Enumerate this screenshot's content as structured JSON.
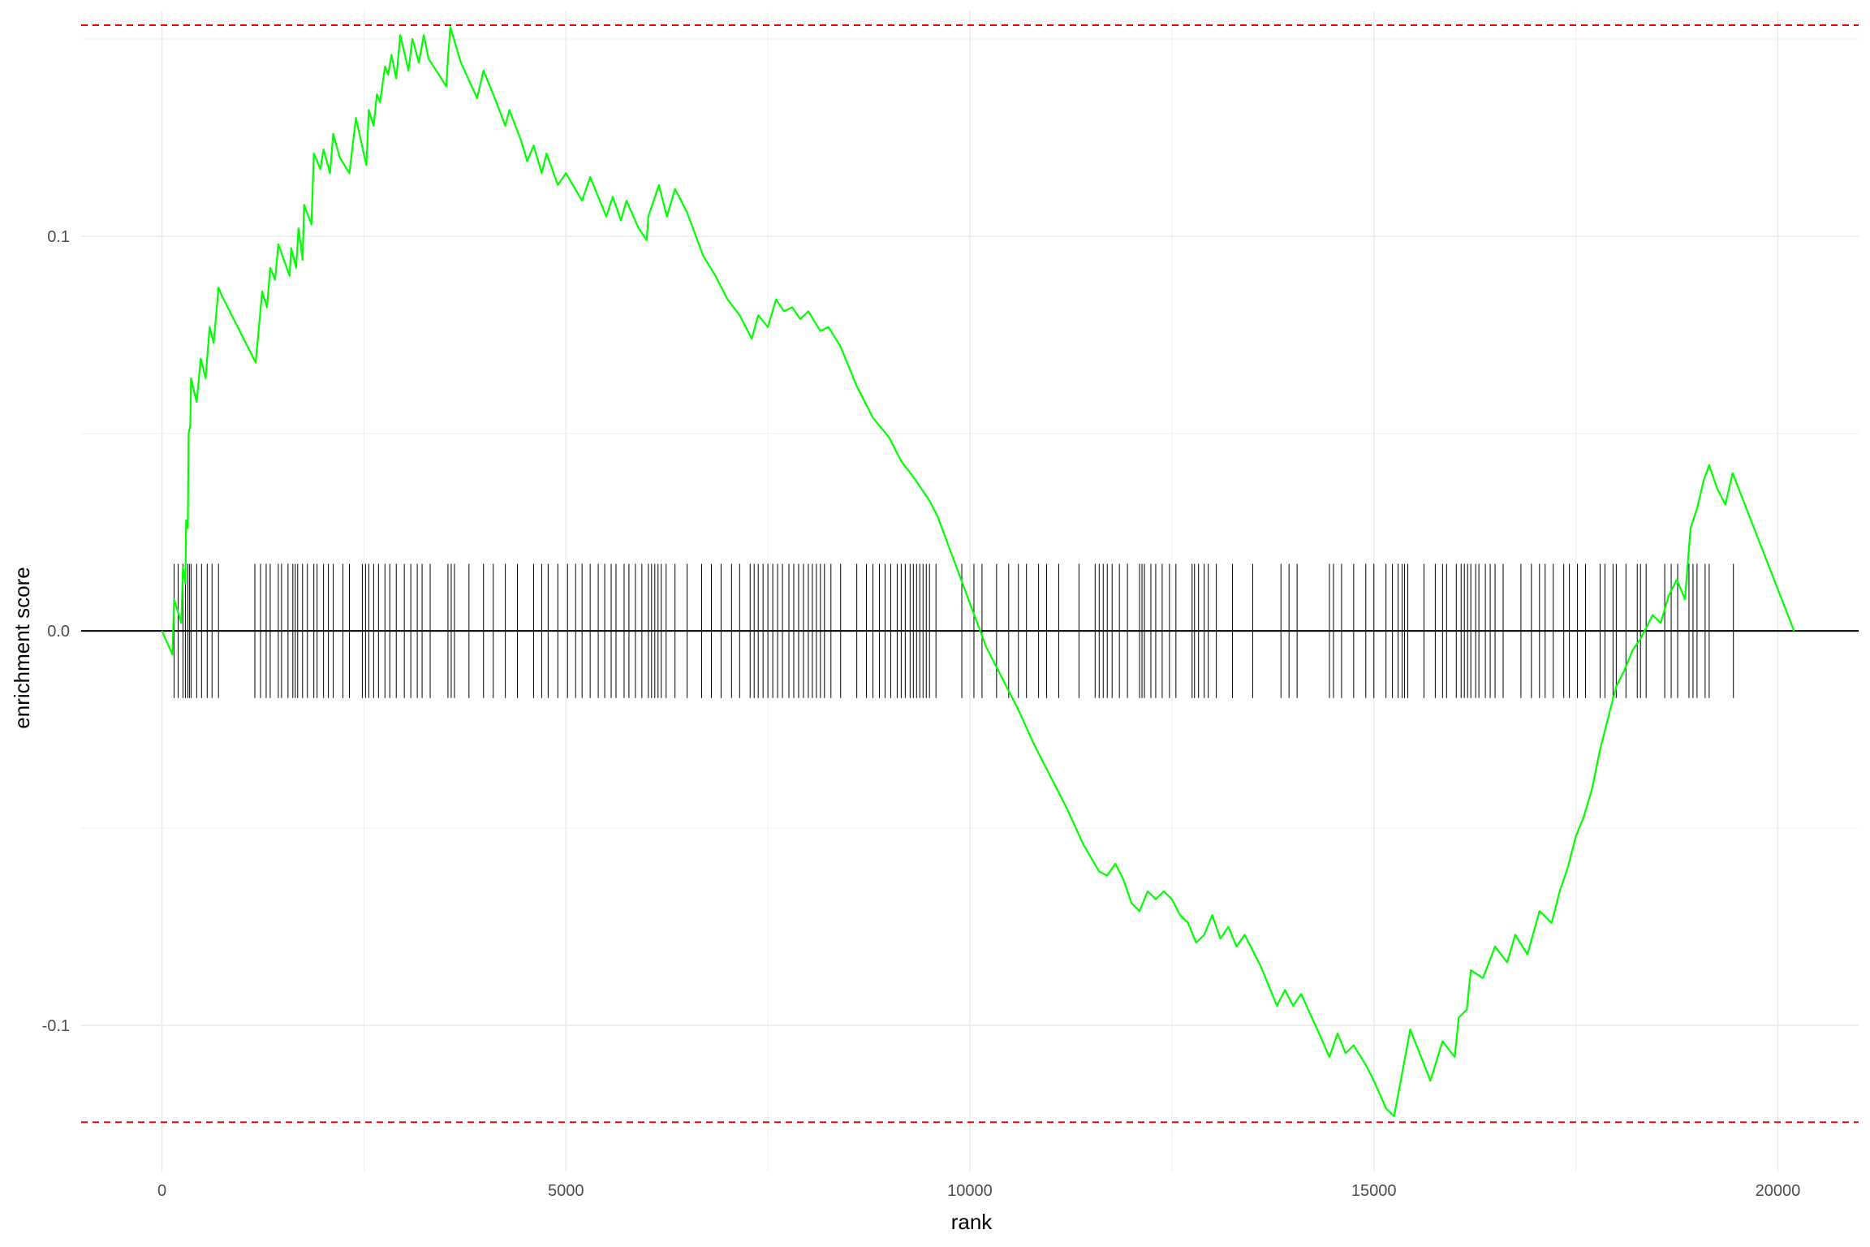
{
  "chart_data": {
    "type": "line",
    "title": "",
    "xlabel": "rank",
    "ylabel": "enrichment score",
    "xlim": [
      -1000,
      21000
    ],
    "ylim": [
      -0.137,
      0.157
    ],
    "x_ticks": [
      0,
      5000,
      10000,
      15000,
      20000
    ],
    "x_tick_labels": [
      "0",
      "5000",
      "10000",
      "15000",
      "20000"
    ],
    "y_ticks": [
      -0.1,
      0.0,
      0.1
    ],
    "y_tick_labels": [
      "-0.1",
      "0.0",
      "0.1"
    ],
    "grid": true,
    "line_color": "#00ff00",
    "threshold_color": "#ff0000",
    "thresholds": [
      0.1535,
      -0.1245
    ],
    "baseline": 0,
    "series": [
      {
        "values": [
          [
            0,
            0.0
          ],
          [
            130,
            -0.006
          ],
          [
            150,
            0.008
          ],
          [
            240,
            0.002
          ],
          [
            260,
            0.016
          ],
          [
            290,
            0.012
          ],
          [
            300,
            0.028
          ],
          [
            320,
            0.026
          ],
          [
            330,
            0.05
          ],
          [
            350,
            0.052
          ],
          [
            360,
            0.064
          ],
          [
            430,
            0.058
          ],
          [
            480,
            0.069
          ],
          [
            540,
            0.064
          ],
          [
            590,
            0.077
          ],
          [
            640,
            0.073
          ],
          [
            700,
            0.087
          ],
          [
            740,
            0.085
          ],
          [
            1160,
            0.068
          ],
          [
            1240,
            0.086
          ],
          [
            1300,
            0.082
          ],
          [
            1340,
            0.092
          ],
          [
            1400,
            0.089
          ],
          [
            1440,
            0.098
          ],
          [
            1580,
            0.09
          ],
          [
            1600,
            0.097
          ],
          [
            1660,
            0.092
          ],
          [
            1690,
            0.102
          ],
          [
            1740,
            0.094
          ],
          [
            1760,
            0.108
          ],
          [
            1850,
            0.103
          ],
          [
            1880,
            0.121
          ],
          [
            1960,
            0.117
          ],
          [
            2000,
            0.122
          ],
          [
            2080,
            0.116
          ],
          [
            2120,
            0.126
          ],
          [
            2200,
            0.12
          ],
          [
            2320,
            0.116
          ],
          [
            2400,
            0.13
          ],
          [
            2530,
            0.118
          ],
          [
            2560,
            0.132
          ],
          [
            2620,
            0.128
          ],
          [
            2660,
            0.136
          ],
          [
            2700,
            0.134
          ],
          [
            2760,
            0.143
          ],
          [
            2800,
            0.141
          ],
          [
            2840,
            0.146
          ],
          [
            2900,
            0.14
          ],
          [
            2950,
            0.151
          ],
          [
            3050,
            0.142
          ],
          [
            3100,
            0.15
          ],
          [
            3180,
            0.144
          ],
          [
            3240,
            0.151
          ],
          [
            3300,
            0.145
          ],
          [
            3520,
            0.138
          ],
          [
            3540,
            0.145
          ],
          [
            3570,
            0.153
          ],
          [
            3700,
            0.144
          ],
          [
            3900,
            0.135
          ],
          [
            3980,
            0.142
          ],
          [
            4100,
            0.136
          ],
          [
            4250,
            0.128
          ],
          [
            4300,
            0.132
          ],
          [
            4450,
            0.124
          ],
          [
            4520,
            0.119
          ],
          [
            4600,
            0.123
          ],
          [
            4700,
            0.116
          ],
          [
            4760,
            0.121
          ],
          [
            4900,
            0.113
          ],
          [
            5000,
            0.116
          ],
          [
            5200,
            0.109
          ],
          [
            5300,
            0.115
          ],
          [
            5500,
            0.105
          ],
          [
            5580,
            0.11
          ],
          [
            5680,
            0.104
          ],
          [
            5750,
            0.109
          ],
          [
            5900,
            0.102
          ],
          [
            6000,
            0.099
          ],
          [
            6020,
            0.105
          ],
          [
            6150,
            0.113
          ],
          [
            6250,
            0.105
          ],
          [
            6350,
            0.112
          ],
          [
            6500,
            0.106
          ],
          [
            6700,
            0.095
          ],
          [
            6850,
            0.09
          ],
          [
            7000,
            0.084
          ],
          [
            7150,
            0.08
          ],
          [
            7300,
            0.074
          ],
          [
            7380,
            0.08
          ],
          [
            7500,
            0.077
          ],
          [
            7600,
            0.084
          ],
          [
            7700,
            0.081
          ],
          [
            7800,
            0.082
          ],
          [
            7900,
            0.079
          ],
          [
            8000,
            0.081
          ],
          [
            8150,
            0.076
          ],
          [
            8250,
            0.077
          ],
          [
            8400,
            0.072
          ],
          [
            8600,
            0.062
          ],
          [
            8800,
            0.054
          ],
          [
            9000,
            0.049
          ],
          [
            9150,
            0.043
          ],
          [
            9300,
            0.039
          ],
          [
            9500,
            0.033
          ],
          [
            9600,
            0.029
          ],
          [
            9800,
            0.018
          ],
          [
            10000,
            0.007
          ],
          [
            10200,
            -0.004
          ],
          [
            10400,
            -0.012
          ],
          [
            10600,
            -0.02
          ],
          [
            10800,
            -0.029
          ],
          [
            11000,
            -0.037
          ],
          [
            11200,
            -0.045
          ],
          [
            11400,
            -0.054
          ],
          [
            11600,
            -0.061
          ],
          [
            11700,
            -0.062
          ],
          [
            11800,
            -0.059
          ],
          [
            11900,
            -0.063
          ],
          [
            12000,
            -0.069
          ],
          [
            12100,
            -0.071
          ],
          [
            12200,
            -0.066
          ],
          [
            12300,
            -0.068
          ],
          [
            12400,
            -0.066
          ],
          [
            12500,
            -0.068
          ],
          [
            12600,
            -0.072
          ],
          [
            12700,
            -0.074
          ],
          [
            12800,
            -0.079
          ],
          [
            12900,
            -0.077
          ],
          [
            13000,
            -0.072
          ],
          [
            13100,
            -0.078
          ],
          [
            13200,
            -0.075
          ],
          [
            13300,
            -0.08
          ],
          [
            13400,
            -0.077
          ],
          [
            13600,
            -0.085
          ],
          [
            13800,
            -0.095
          ],
          [
            13900,
            -0.091
          ],
          [
            14000,
            -0.095
          ],
          [
            14100,
            -0.092
          ],
          [
            14300,
            -0.101
          ],
          [
            14450,
            -0.108
          ],
          [
            14550,
            -0.102
          ],
          [
            14650,
            -0.107
          ],
          [
            14750,
            -0.105
          ],
          [
            14900,
            -0.11
          ],
          [
            15000,
            -0.114
          ],
          [
            15150,
            -0.121
          ],
          [
            15250,
            -0.123
          ],
          [
            15350,
            -0.112
          ],
          [
            15450,
            -0.101
          ],
          [
            15700,
            -0.114
          ],
          [
            15850,
            -0.104
          ],
          [
            16000,
            -0.108
          ],
          [
            16050,
            -0.098
          ],
          [
            16150,
            -0.096
          ],
          [
            16200,
            -0.086
          ],
          [
            16350,
            -0.088
          ],
          [
            16500,
            -0.08
          ],
          [
            16650,
            -0.084
          ],
          [
            16750,
            -0.077
          ],
          [
            16900,
            -0.082
          ],
          [
            17050,
            -0.071
          ],
          [
            17200,
            -0.074
          ],
          [
            17300,
            -0.066
          ],
          [
            17400,
            -0.06
          ],
          [
            17500,
            -0.052
          ],
          [
            17600,
            -0.047
          ],
          [
            17700,
            -0.04
          ],
          [
            17800,
            -0.03
          ],
          [
            17900,
            -0.022
          ],
          [
            18000,
            -0.014
          ],
          [
            18100,
            -0.01
          ],
          [
            18200,
            -0.005
          ],
          [
            18300,
            -0.002
          ],
          [
            18450,
            0.004
          ],
          [
            18550,
            0.002
          ],
          [
            18650,
            0.009
          ],
          [
            18750,
            0.013
          ],
          [
            18850,
            0.008
          ],
          [
            18920,
            0.026
          ],
          [
            19000,
            0.031
          ],
          [
            19080,
            0.038
          ],
          [
            19150,
            0.042
          ],
          [
            19250,
            0.036
          ],
          [
            19350,
            0.032
          ],
          [
            19440,
            0.04
          ],
          [
            20200,
            0.0
          ]
        ]
      }
    ],
    "gene_hits": [
      150,
      200,
      260,
      290,
      320,
      340,
      360,
      430,
      490,
      560,
      620,
      700,
      1150,
      1220,
      1290,
      1340,
      1440,
      1480,
      1560,
      1620,
      1650,
      1680,
      1740,
      1800,
      1880,
      1920,
      2000,
      2060,
      2120,
      2240,
      2320,
      2480,
      2520,
      2560,
      2620,
      2680,
      2760,
      2820,
      2900,
      3000,
      3080,
      3160,
      3220,
      3320,
      3540,
      3580,
      3620,
      3800,
      3980,
      4100,
      4250,
      4400,
      4600,
      4700,
      4780,
      4900,
      5020,
      5120,
      5200,
      5300,
      5400,
      5480,
      5560,
      5620,
      5720,
      5780,
      5860,
      5940,
      6020,
      6060,
      6100,
      6140,
      6180,
      6240,
      6350,
      6500,
      6680,
      6800,
      6920,
      7050,
      7150,
      7280,
      7330,
      7380,
      7440,
      7500,
      7560,
      7620,
      7680,
      7760,
      7820,
      7880,
      7940,
      8000,
      8050,
      8100,
      8150,
      8200,
      8280,
      8400,
      8600,
      8720,
      8800,
      8880,
      8950,
      9020,
      9100,
      9150,
      9200,
      9260,
      9300,
      9340,
      9380,
      9420,
      9460,
      9500,
      9580,
      9900,
      10050,
      10150,
      10330,
      10480,
      10600,
      10700,
      10850,
      10950,
      11100,
      11350,
      11550,
      11600,
      11650,
      11700,
      11760,
      11850,
      11950,
      12100,
      12130,
      12160,
      12240,
      12300,
      12380,
      12470,
      12550,
      12750,
      12780,
      12830,
      12900,
      12950,
      13050,
      13250,
      13500,
      13850,
      13950,
      14050,
      14450,
      14500,
      14600,
      14750,
      14900,
      15000,
      15150,
      15230,
      15300,
      15350,
      15380,
      15420,
      15620,
      15760,
      15850,
      15900,
      16020,
      16080,
      16120,
      16160,
      16200,
      16260,
      16300,
      16380,
      16440,
      16500,
      16600,
      16820,
      16950,
      17050,
      17120,
      17220,
      17350,
      17420,
      17520,
      17620,
      17800,
      17860,
      17960,
      18000,
      18120,
      18260,
      18300,
      18370,
      18600,
      18680,
      18760,
      18900,
      18950,
      19000,
      19100,
      19150,
      19450
    ]
  }
}
